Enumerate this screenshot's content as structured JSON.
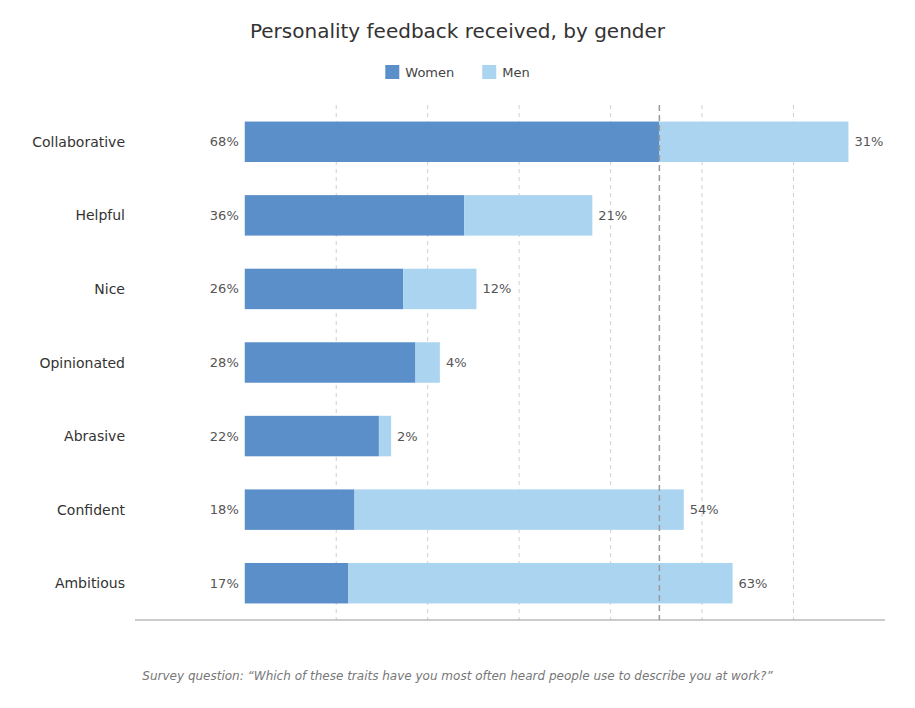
{
  "chart_data": {
    "type": "bar",
    "orientation": "horizontal",
    "stacked": true,
    "title": "Personality feedback received, by gender",
    "subtitle": "Survey question: “Which of these traits have you most often heard people use to describe you at work?”",
    "categories": [
      "Collaborative",
      "Helpful",
      "Nice",
      "Opinionated",
      "Abrasive",
      "Confident",
      "Ambitious"
    ],
    "series": [
      {
        "name": "Women",
        "color": "#5b8fc9",
        "values": [
          68,
          36,
          26,
          28,
          22,
          18,
          17
        ],
        "value_labels": [
          "68%",
          "36%",
          "26%",
          "28%",
          "22%",
          "18%",
          "17%"
        ]
      },
      {
        "name": "Men",
        "color": "#aad4f0",
        "values": [
          31,
          21,
          12,
          4,
          2,
          54,
          63
        ],
        "value_labels": [
          "31%",
          "21%",
          "12%",
          "4%",
          "2%",
          "54%",
          "63%"
        ]
      }
    ],
    "xlim": [
      -18,
      105
    ],
    "xticks": [
      15,
      30,
      45,
      60,
      75,
      90
    ],
    "reference_line": 68,
    "grid": true,
    "legend": "top",
    "data_labels": true,
    "tick_labels": "y"
  }
}
